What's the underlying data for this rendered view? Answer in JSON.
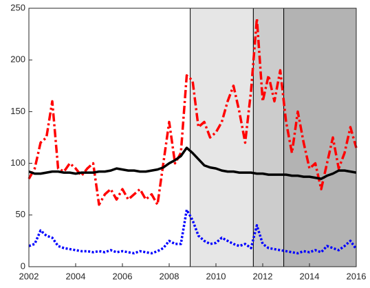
{
  "chart_data": {
    "type": "line",
    "x": [
      2002,
      2002.25,
      2002.5,
      2002.75,
      2003,
      2003.25,
      2003.5,
      2003.75,
      2004,
      2004.25,
      2004.5,
      2004.75,
      2005,
      2005.25,
      2005.5,
      2005.75,
      2006,
      2006.25,
      2006.5,
      2006.75,
      2007,
      2007.25,
      2007.5,
      2007.75,
      2008,
      2008.25,
      2008.5,
      2008.75,
      2009,
      2009.25,
      2009.5,
      2009.75,
      2010,
      2010.25,
      2010.5,
      2010.75,
      2011,
      2011.25,
      2011.5,
      2011.75,
      2012,
      2012.25,
      2012.5,
      2012.75,
      2013,
      2013.25,
      2013.5,
      2013.75,
      2014,
      2014.25,
      2014.5,
      2014.75,
      2015,
      2015.25,
      2015.5,
      2015.75,
      2016
    ],
    "series": [
      {
        "color": "#ff0000",
        "linestyle": "dashdot",
        "values": [
          85,
          95,
          120,
          125,
          160,
          95,
          92,
          100,
          95,
          88,
          95,
          100,
          60,
          70,
          75,
          65,
          75,
          65,
          70,
          75,
          65,
          70,
          60,
          100,
          140,
          100,
          110,
          185,
          180,
          135,
          140,
          125,
          130,
          140,
          160,
          175,
          150,
          120,
          170,
          240,
          160,
          185,
          160,
          190,
          140,
          110,
          150,
          120,
          95,
          100,
          75,
          100,
          125,
          95,
          110,
          135,
          115
        ]
      },
      {
        "color": "#000000",
        "linestyle": "solid",
        "values": [
          92,
          90,
          90,
          91,
          92,
          92,
          91,
          91,
          90,
          91,
          91,
          91,
          92,
          92,
          93,
          95,
          94,
          93,
          93,
          92,
          92,
          93,
          94,
          96,
          100,
          103,
          107,
          115,
          110,
          104,
          98,
          96,
          95,
          93,
          92,
          92,
          91,
          91,
          91,
          90,
          90,
          89,
          89,
          89,
          89,
          88,
          88,
          87,
          87,
          86,
          85,
          88,
          90,
          93,
          93,
          92,
          91
        ]
      },
      {
        "color": "#0000ff",
        "linestyle": "dotted",
        "values": [
          20,
          22,
          35,
          30,
          28,
          20,
          18,
          17,
          16,
          15,
          15,
          14,
          15,
          14,
          16,
          14,
          15,
          14,
          13,
          15,
          14,
          13,
          15,
          18,
          25,
          22,
          22,
          55,
          45,
          30,
          25,
          22,
          23,
          28,
          25,
          22,
          20,
          22,
          18,
          40,
          22,
          18,
          17,
          16,
          15,
          14,
          13,
          15,
          14,
          16,
          14,
          20,
          18,
          16,
          20,
          25,
          17
        ]
      }
    ],
    "shaded_regions": [
      {
        "x0": 2008.9,
        "x1": 2011.6,
        "color": "#e6e6e6"
      },
      {
        "x0": 2011.6,
        "x1": 2012.9,
        "color": "#cccccc"
      },
      {
        "x0": 2012.9,
        "x1": 2016,
        "color": "#b3b3b3"
      }
    ],
    "xlim": [
      2002,
      2016
    ],
    "xticks": [
      2002,
      2004,
      2006,
      2008,
      2010,
      2012,
      2014,
      2016
    ],
    "ylim": [
      0,
      250
    ],
    "yticks": [
      0,
      50,
      100,
      150,
      200,
      250
    ]
  }
}
